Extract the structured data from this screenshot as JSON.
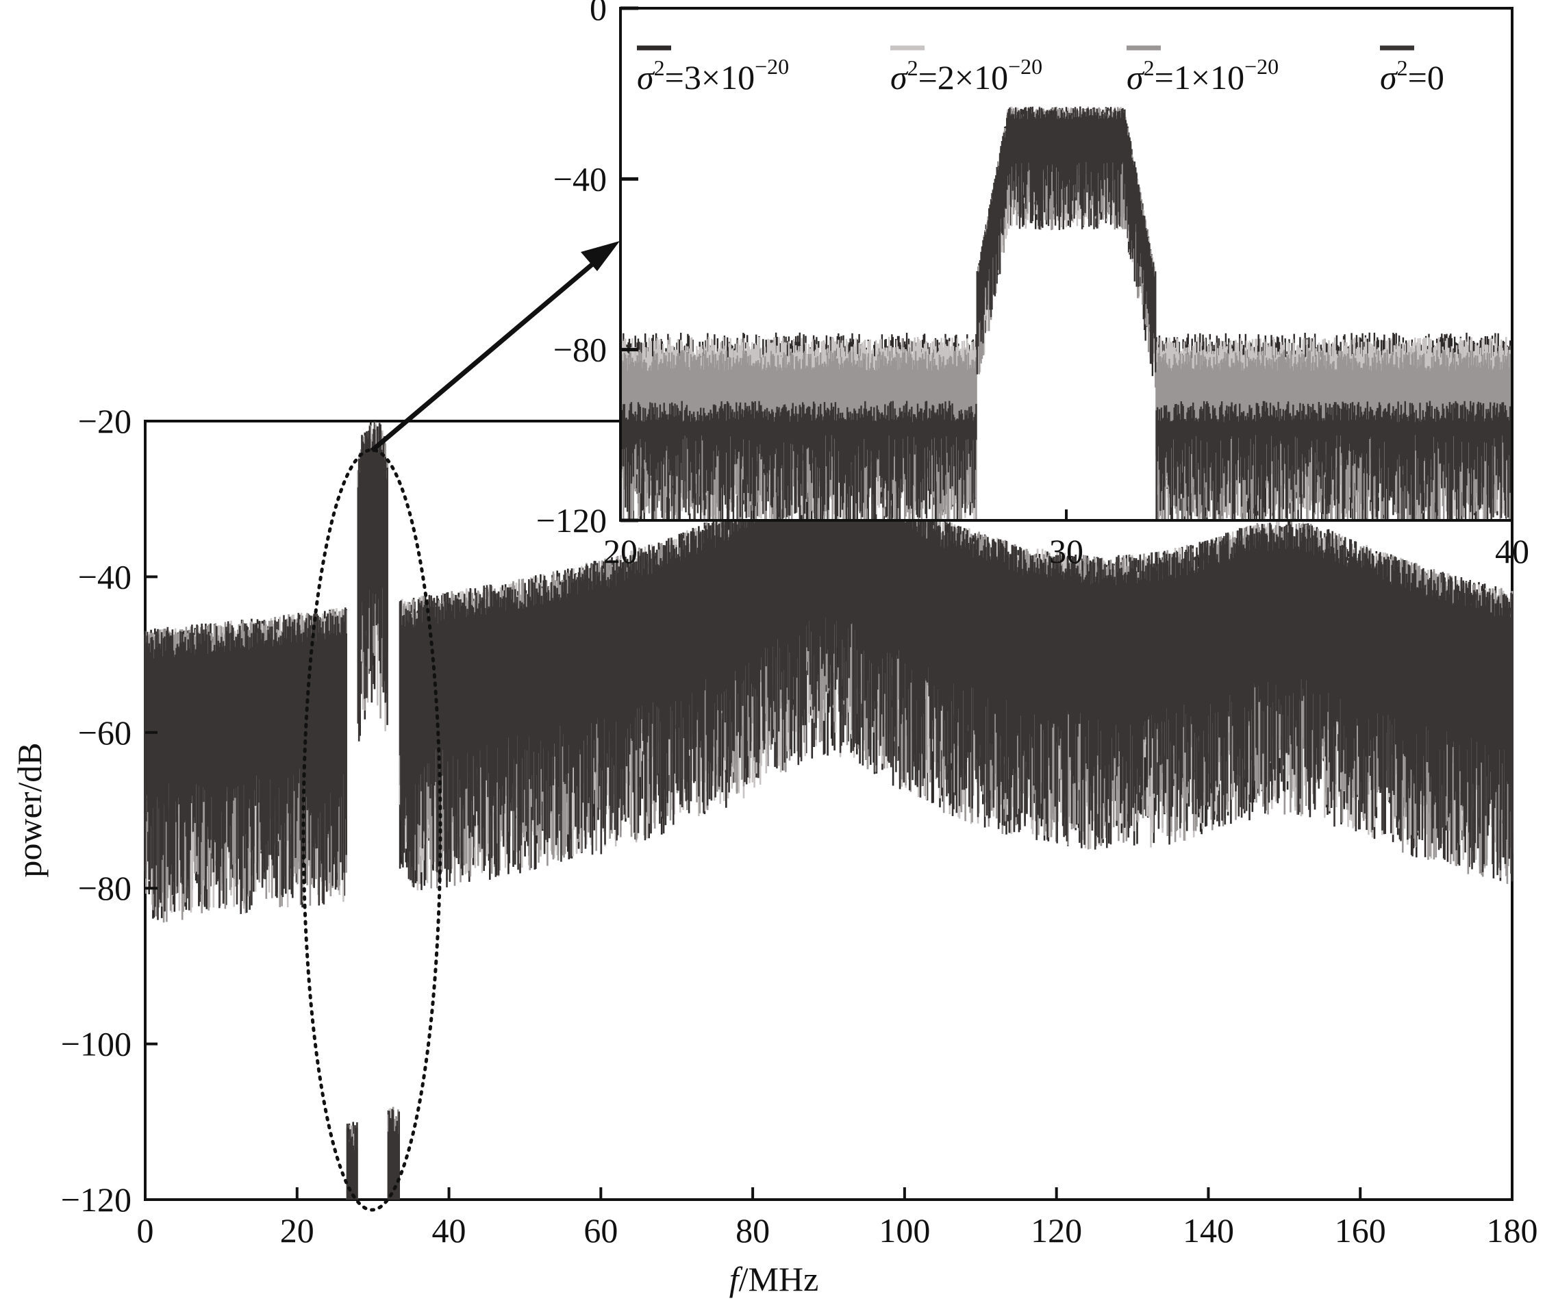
{
  "chart_data": [
    {
      "type": "line",
      "panel": "main",
      "xlabel": "f/MHz",
      "xlabel_italic": "f",
      "xlabel_unit": "/MHz",
      "ylabel": "power/dB",
      "xlim": [
        0,
        180
      ],
      "ylim": [
        -120,
        -20
      ],
      "xticks": [
        0,
        20,
        40,
        60,
        80,
        100,
        120,
        140,
        160,
        180
      ],
      "yticks": [
        -20,
        -40,
        -60,
        -80,
        -100,
        -120
      ],
      "grid": false,
      "peaks": [
        {
          "x": 30,
          "y": -26
        },
        {
          "x": 90,
          "y": -35
        },
        {
          "x": 150,
          "y": -42
        }
      ],
      "series": [
        {
          "name": "σ²=3×10⁻²⁰",
          "noise_floor_db": -80,
          "color": "#2e2a2a"
        },
        {
          "name": "σ²=2×10⁻²⁰",
          "noise_floor_db": -85,
          "color": "#c8c4c4"
        },
        {
          "name": "σ²=1×10⁻²⁰",
          "noise_floor_db": -88,
          "color": "#9a9696"
        },
        {
          "name": "σ²=0",
          "noise_floor_db": -100,
          "color": "#3a3535"
        }
      ]
    },
    {
      "type": "line",
      "panel": "inset",
      "xlim": [
        20,
        40
      ],
      "ylim": [
        -120,
        0
      ],
      "xticks": [
        20,
        30,
        40
      ],
      "yticks": [
        0,
        -40,
        -80,
        -120
      ],
      "grid": false,
      "band": {
        "start": 28,
        "end": 32,
        "peak": -30
      },
      "series": [
        {
          "name": "σ²=3×10⁻²⁰",
          "noise_floor_db": -80,
          "color": "#2e2a2a"
        },
        {
          "name": "σ²=2×10⁻²⁰",
          "noise_floor_db": -85,
          "color": "#c8c4c4"
        },
        {
          "name": "σ²=1×10⁻²⁰",
          "noise_floor_db": -88,
          "color": "#9a9696"
        },
        {
          "name": "σ²=0",
          "noise_floor_db": -100,
          "color": "#3a3535"
        }
      ]
    }
  ],
  "legend": [
    {
      "base": "σ",
      "sup1": "2",
      "rest": "=3×10",
      "sup2": "−20",
      "color": "#2e2a2a"
    },
    {
      "base": "σ",
      "sup1": "2",
      "rest": "=2×10",
      "sup2": "−20",
      "color": "#c8c4c4"
    },
    {
      "base": "σ",
      "sup1": "2",
      "rest": "=1×10",
      "sup2": "−20",
      "color": "#9a9696"
    },
    {
      "base": "σ",
      "sup1": "2",
      "rest": "=0",
      "sup2": "",
      "color": "#3a3535"
    }
  ]
}
